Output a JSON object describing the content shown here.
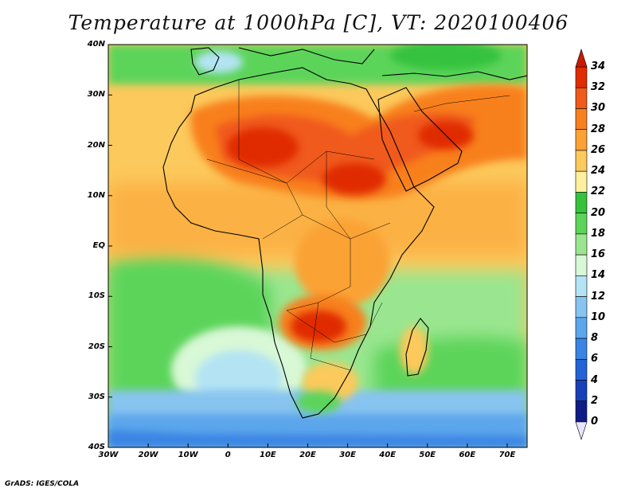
{
  "title": "Temperature at 1000hPa [C], VT: 2020100406",
  "credit": "GrADS: IGES/COLA",
  "lat_labels": [
    "40N",
    "30N",
    "20N",
    "10N",
    "EQ",
    "10S",
    "20S",
    "30S",
    "40S"
  ],
  "lon_labels": [
    "30W",
    "20W",
    "10W",
    "0",
    "10E",
    "20E",
    "30E",
    "40E",
    "50E",
    "60E",
    "70E"
  ],
  "colorbar": {
    "labels": [
      "34",
      "32",
      "30",
      "28",
      "26",
      "24",
      "22",
      "20",
      "18",
      "16",
      "14",
      "12",
      "10",
      "8",
      "6",
      "4",
      "2",
      "0"
    ],
    "colors": [
      "#e02c00",
      "#f05a1a",
      "#f8801e",
      "#fba236",
      "#fcc95c",
      "#fff0a0",
      "#36c23c",
      "#5cd45a",
      "#9ae690",
      "#d8f8d6",
      "#b4e4f4",
      "#88c4f0",
      "#5ca6ec",
      "#3a84e4",
      "#2462d6",
      "#1840b8",
      "#101c86"
    ],
    "top_color": "#c81a00",
    "bottom_color": "#e8e4ff"
  }
}
